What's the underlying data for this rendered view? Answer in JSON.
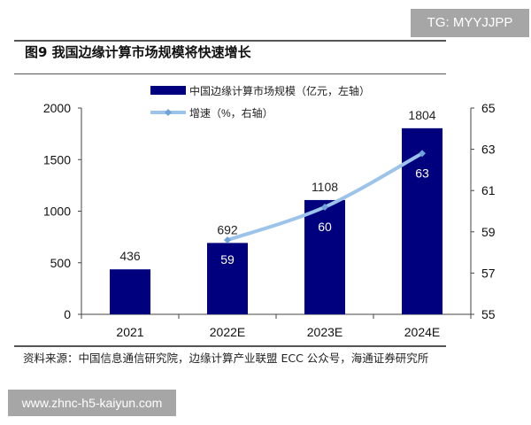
{
  "watermark_top": "TG: MYYJJPP",
  "watermark_bottom": "www.zhnc-h5-kaiyun.com",
  "figure_title": "图9  我国边缘计算市场规模将快速增长",
  "source": "资料来源：中国信息通信研究院，边缘计算产业联盟 ECC 公众号，海通证券研究所",
  "colors": {
    "bar": "#00007f",
    "line": "#9cc3ea"
  },
  "chart_data": {
    "type": "bar+line",
    "categories": [
      "2021",
      "2022E",
      "2023E",
      "2024E"
    ],
    "series": [
      {
        "name": "中国边缘计算市场规模（亿元，左轴）",
        "type": "bar",
        "axis": "left",
        "values": [
          436,
          692,
          1108,
          1804
        ],
        "labels": [
          "436",
          "692",
          "1108",
          "1804"
        ]
      },
      {
        "name": "增速（%，右轴）",
        "type": "line",
        "axis": "right",
        "values": [
          null,
          58.6,
          60.2,
          62.8
        ],
        "labels": [
          "",
          "59",
          "60",
          "63"
        ]
      }
    ],
    "left_axis": {
      "ylim": [
        0,
        2000
      ],
      "ticks": [
        "0",
        "500",
        "1000",
        "1500",
        "2000"
      ]
    },
    "right_axis": {
      "ylim": [
        55,
        65
      ],
      "ticks": [
        "55",
        "57",
        "59",
        "61",
        "63",
        "65"
      ]
    },
    "grid": false,
    "legend": "top-center"
  }
}
